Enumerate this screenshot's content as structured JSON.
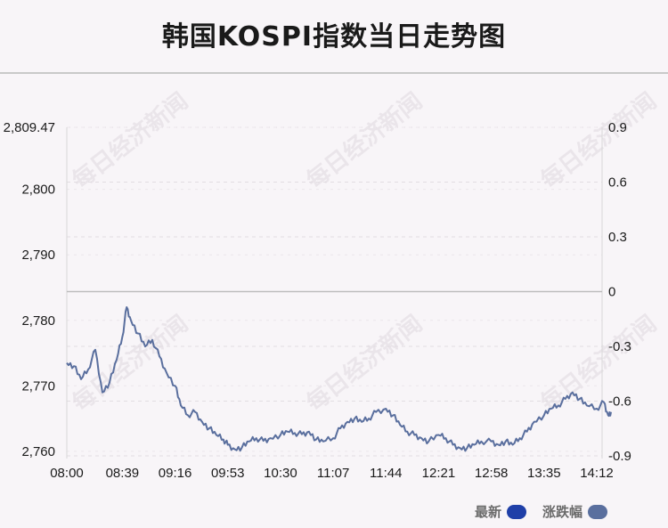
{
  "title": "韩国KOSPI指数当日走势图",
  "watermark": "每日经济新闻",
  "legend": {
    "latest_label": "最新",
    "latest_color": "#1f3fa8",
    "change_label": "涨跌幅",
    "change_color": "#5a6f9e"
  },
  "chart_data": {
    "type": "line",
    "title": "韩国KOSPI指数当日走势图",
    "x_ticks": [
      "08:00",
      "08:39",
      "09:16",
      "09:53",
      "10:30",
      "11:07",
      "11:44",
      "12:21",
      "12:58",
      "13:35",
      "14:12"
    ],
    "y_left_ticks": [
      "2,760",
      "2,770",
      "2,780",
      "2,790",
      "2,800",
      "2,809.47"
    ],
    "y_left_range": [
      2759.3,
      2809.47
    ],
    "y_right_ticks": [
      "-0.9",
      "-0.6",
      "-0.3",
      "0",
      "0.3",
      "0.6",
      "0.9"
    ],
    "y_right_range": [
      -0.9,
      0.9
    ],
    "reference_line_right_value": 0,
    "grid": "dashed-horizontal",
    "series": [
      {
        "line_color": "#5a6f9e",
        "x": [
          "08:00",
          "08:05",
          "08:10",
          "08:15",
          "08:20",
          "08:25",
          "08:30",
          "08:35",
          "08:39",
          "08:42",
          "08:45",
          "08:50",
          "08:55",
          "09:00",
          "09:05",
          "09:10",
          "09:16",
          "09:20",
          "09:25",
          "09:30",
          "09:35",
          "09:40",
          "09:45",
          "09:50",
          "09:53",
          "09:58",
          "10:03",
          "10:08",
          "10:13",
          "10:18",
          "10:23",
          "10:30",
          "10:35",
          "10:40",
          "10:45",
          "10:50",
          "10:55",
          "11:00",
          "11:07",
          "11:12",
          "11:17",
          "11:22",
          "11:27",
          "11:32",
          "11:37",
          "11:44",
          "11:49",
          "11:54",
          "11:59",
          "12:04",
          "12:09",
          "12:14",
          "12:21",
          "12:26",
          "12:31",
          "12:36",
          "12:41",
          "12:46",
          "12:51",
          "12:58",
          "13:03",
          "13:08",
          "13:13",
          "13:18",
          "13:23",
          "13:28",
          "13:35",
          "13:40",
          "13:45",
          "13:50",
          "13:55",
          "14:00",
          "14:05",
          "14:12",
          "14:17",
          "14:20",
          "14:22"
        ],
        "y": [
          2773.5,
          2773.0,
          2771.0,
          2772.5,
          2775.5,
          2769.0,
          2770.5,
          2774.0,
          2777.5,
          2782.0,
          2780.0,
          2778.0,
          2776.0,
          2777.0,
          2774.5,
          2772.0,
          2770.0,
          2767.0,
          2765.5,
          2766.0,
          2764.5,
          2763.5,
          2762.5,
          2761.8,
          2761.0,
          2760.3,
          2760.6,
          2761.5,
          2762.0,
          2761.6,
          2762.0,
          2762.5,
          2763.0,
          2762.8,
          2762.6,
          2763.0,
          2761.8,
          2761.5,
          2762.0,
          2763.5,
          2764.5,
          2765.0,
          2764.5,
          2765.0,
          2766.0,
          2766.5,
          2765.5,
          2764.0,
          2763.0,
          2762.5,
          2762.0,
          2761.5,
          2762.5,
          2762.0,
          2761.0,
          2760.5,
          2760.5,
          2761.0,
          2761.5,
          2761.5,
          2761.0,
          2761.5,
          2761.0,
          2762.0,
          2763.0,
          2764.5,
          2765.5,
          2766.5,
          2767.0,
          2768.0,
          2769.0,
          2768.0,
          2767.0,
          2766.5,
          2767.5,
          2765.5,
          2766.0
        ]
      }
    ]
  }
}
